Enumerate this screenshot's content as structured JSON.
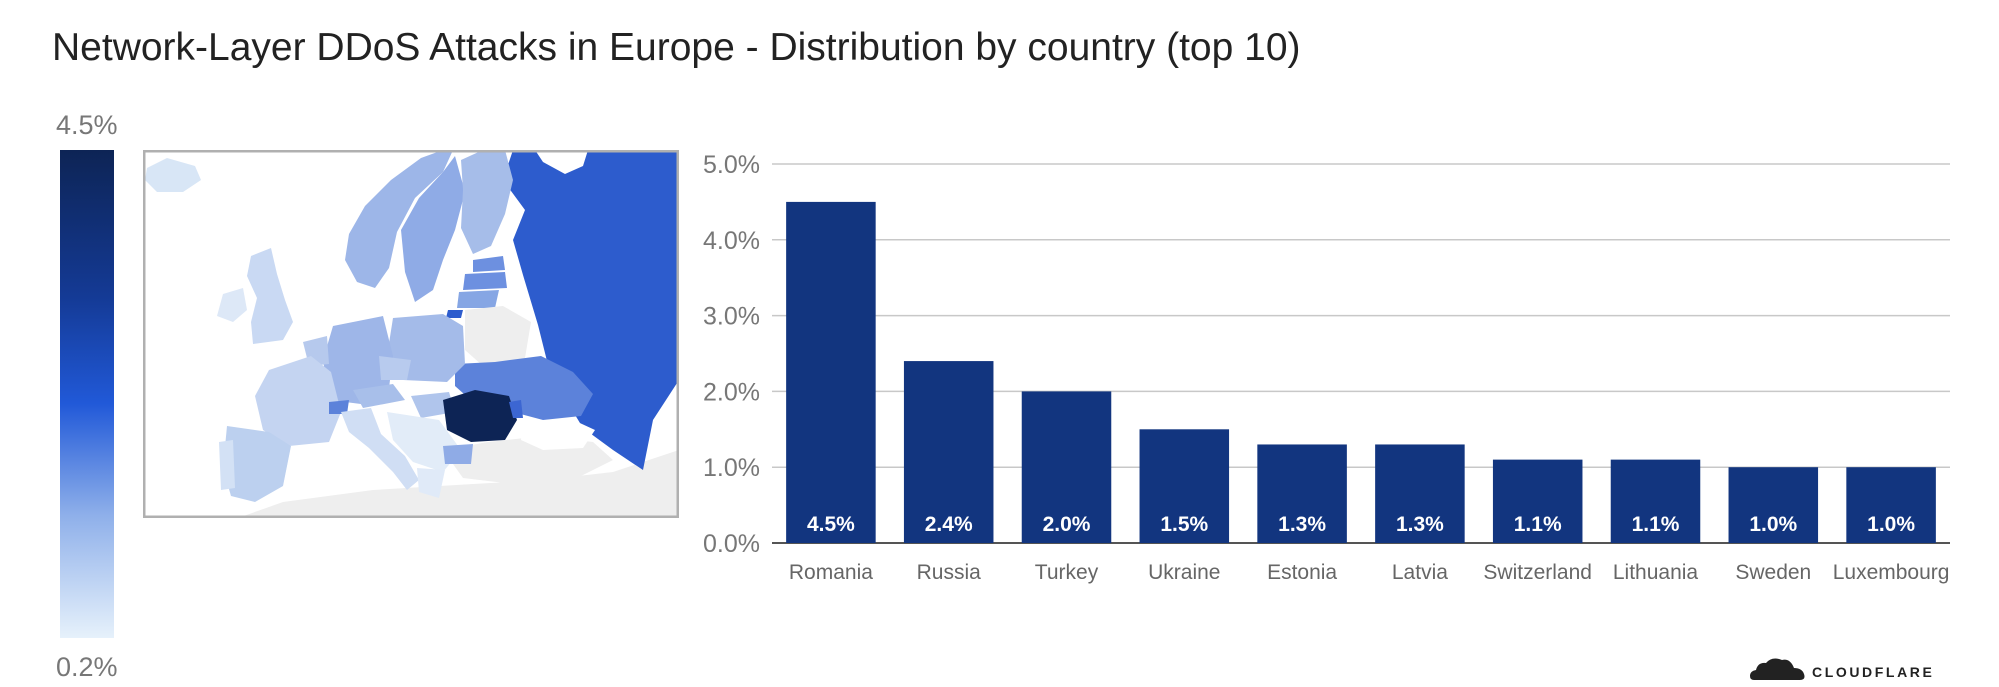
{
  "title": "Network-Layer DDoS Attacks in Europe - Distribution by country (top 10)",
  "color_scale": {
    "max_label": "4.5%",
    "min_label": "0.2%",
    "colors": [
      "#0d2455",
      "#143a95",
      "#2159d8",
      "#8fb0ea",
      "#e6f1fb"
    ]
  },
  "brand": {
    "logo_text": "CLOUDFLARE",
    "logo_icon": "cloud-icon"
  },
  "chart_data": {
    "type": "bar",
    "title": "Network-Layer DDoS Attacks in Europe - Distribution by country (top 10)",
    "categories": [
      "Romania",
      "Russia",
      "Turkey",
      "Ukraine",
      "Estonia",
      "Latvia",
      "Switzerland",
      "Lithuania",
      "Sweden",
      "Luxembourg"
    ],
    "values": [
      4.5,
      2.4,
      2.0,
      1.5,
      1.3,
      1.3,
      1.1,
      1.1,
      1.0,
      1.0
    ],
    "value_labels": [
      "4.5%",
      "2.4%",
      "2.0%",
      "1.5%",
      "1.3%",
      "1.3%",
      "1.1%",
      "1.1%",
      "1.0%",
      "1.0%"
    ],
    "ylim": [
      0,
      5
    ],
    "yticks": [
      0,
      1,
      2,
      3,
      4,
      5
    ],
    "ytick_labels": [
      "0.0%",
      "1.0%",
      "2.0%",
      "3.0%",
      "4.0%",
      "5.0%"
    ],
    "bar_color": "#12357f",
    "grid": true,
    "xlabel": "",
    "ylabel": ""
  }
}
